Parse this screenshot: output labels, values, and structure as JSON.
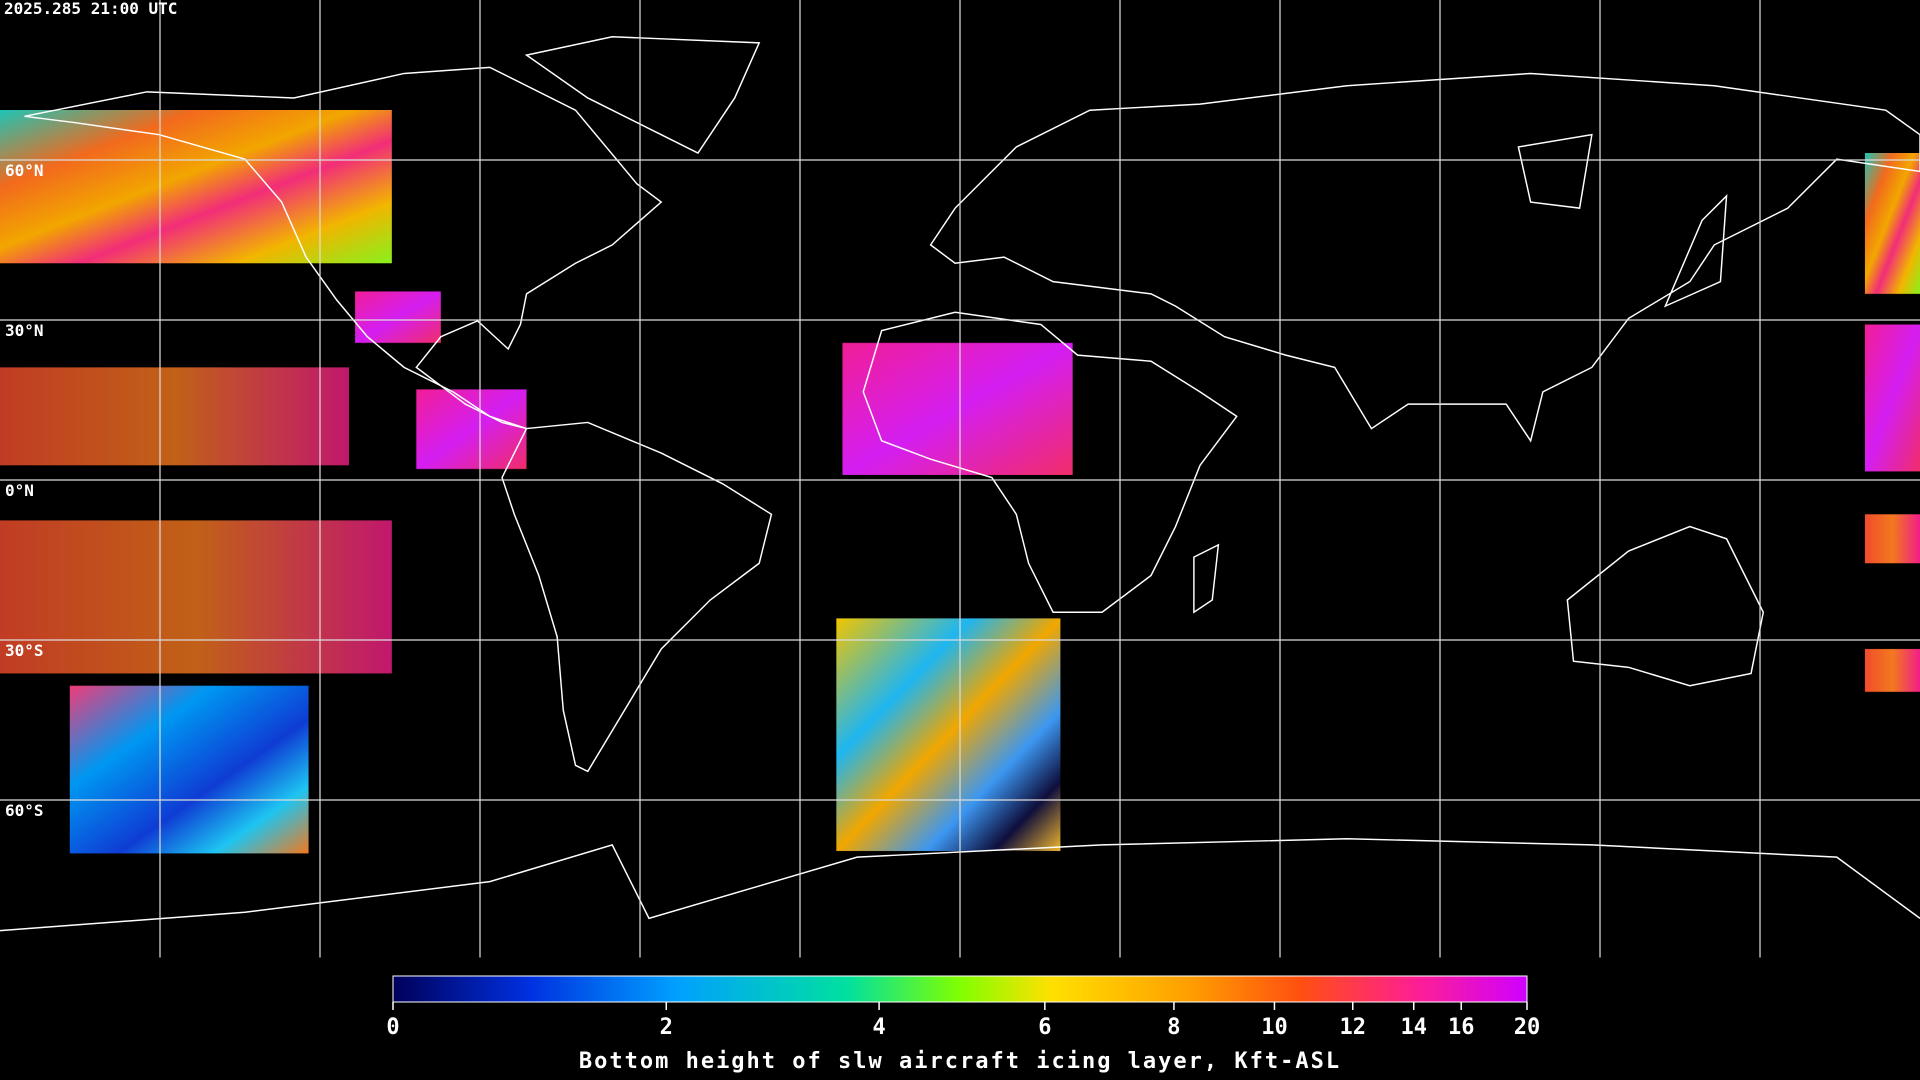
{
  "header": {
    "timestamp": "2025.285 21:00 UTC"
  },
  "map": {
    "latitude_labels": [
      "60°N",
      "30°N",
      "0°N",
      "30°S",
      "60°S"
    ]
  },
  "colorbar": {
    "title": "Bottom height of slw aircraft icing layer, Kft-ASL",
    "lim": [
      0,
      20
    ],
    "ticks": [
      0,
      2,
      4,
      6,
      8,
      10,
      12,
      14,
      16,
      20
    ]
  }
}
